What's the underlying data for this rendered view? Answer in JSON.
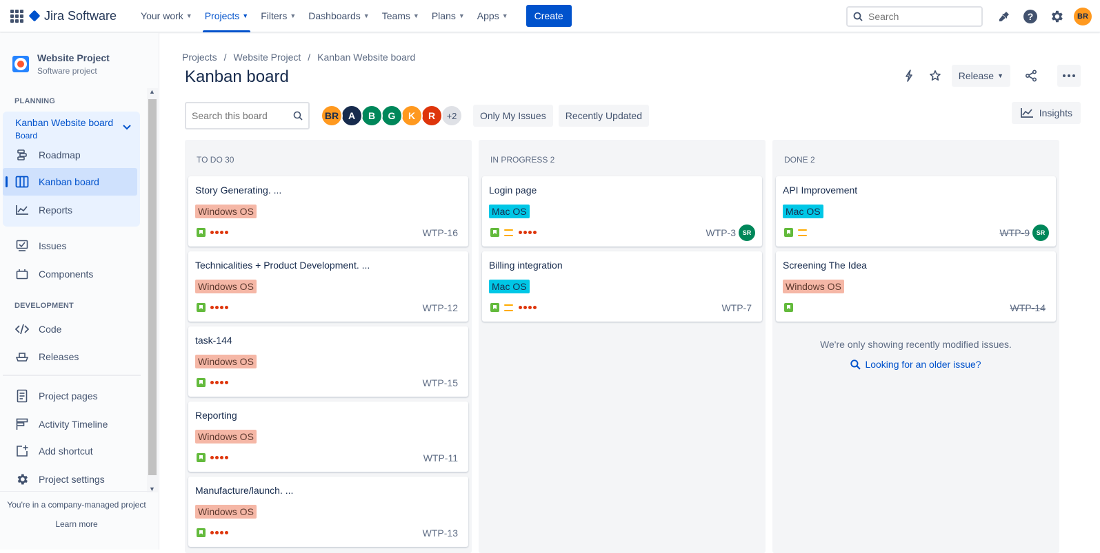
{
  "topbar": {
    "product_name": "Jira Software",
    "nav": [
      {
        "label": "Your work"
      },
      {
        "label": "Projects"
      },
      {
        "label": "Filters"
      },
      {
        "label": "Dashboards"
      },
      {
        "label": "Teams"
      },
      {
        "label": "Plans"
      },
      {
        "label": "Apps"
      }
    ],
    "create_label": "Create",
    "search_placeholder": "Search",
    "user_initials": "BR"
  },
  "sidebar": {
    "project_name": "Website Project",
    "project_type": "Software project",
    "planning_label": "PLANNING",
    "board_name": "Kanban Website board",
    "board_type": "Board",
    "planning_items": [
      {
        "label": "Roadmap",
        "icon": "roadmap-icon"
      },
      {
        "label": "Kanban board",
        "icon": "board-icon"
      },
      {
        "label": "Reports",
        "icon": "reports-icon"
      }
    ],
    "other_items": [
      {
        "label": "Issues",
        "icon": "issues-icon"
      },
      {
        "label": "Components",
        "icon": "components-icon"
      }
    ],
    "development_label": "DEVELOPMENT",
    "dev_items": [
      {
        "label": "Code",
        "icon": "code-icon"
      },
      {
        "label": "Releases",
        "icon": "releases-icon"
      }
    ],
    "bottom_items": [
      {
        "label": "Project pages",
        "icon": "pages-icon"
      },
      {
        "label": "Activity Timeline",
        "icon": "timeline-icon"
      },
      {
        "label": "Add shortcut",
        "icon": "add-shortcut-icon"
      },
      {
        "label": "Project settings",
        "icon": "settings-icon"
      }
    ],
    "footer_text": "You're in a company-managed project",
    "footer_link": "Learn more"
  },
  "main": {
    "breadcrumb": [
      "Projects",
      "Website Project",
      "Kanban Website board"
    ],
    "title": "Kanban board",
    "release_label": "Release",
    "board_search_placeholder": "Search this board",
    "avatars": [
      {
        "initials": "BR",
        "color": "#ff991f",
        "text_color": "#172b4d"
      },
      {
        "initials": "A",
        "color": "#172b4d",
        "text_color": "#ffffff"
      },
      {
        "initials": "B",
        "color": "#00875a",
        "text_color": "#ffffff"
      },
      {
        "initials": "G",
        "color": "#00875a",
        "text_color": "#ffffff"
      },
      {
        "initials": "K",
        "color": "#ff991f",
        "text_color": "#ffffff"
      },
      {
        "initials": "R",
        "color": "#de350b",
        "text_color": "#ffffff"
      }
    ],
    "avatars_more": "+2",
    "filter_only_mine": "Only My Issues",
    "filter_recent": "Recently Updated",
    "insights_label": "Insights"
  },
  "columns": [
    {
      "title": "TO DO 30",
      "cards": [
        {
          "summary": "Story Generating. ...",
          "label": "Windows OS",
          "label_type": "win",
          "key": "WTP-16",
          "priority": "highest",
          "done": false
        },
        {
          "summary": "Technicalities + Product Development. ...",
          "label": "Windows OS",
          "label_type": "win",
          "key": "WTP-12",
          "priority": "highest",
          "done": false
        },
        {
          "summary": "task-144",
          "label": "Windows OS",
          "label_type": "win",
          "key": "WTP-15",
          "priority": "highest",
          "done": false
        },
        {
          "summary": "Reporting",
          "label": "Windows OS",
          "label_type": "win",
          "key": "WTP-11",
          "priority": "highest",
          "done": false
        },
        {
          "summary": "Manufacture/launch. ...",
          "label": "Windows OS",
          "label_type": "win",
          "key": "WTP-13",
          "priority": "highest",
          "done": false
        }
      ]
    },
    {
      "title": "IN PROGRESS 2",
      "cards": [
        {
          "summary": "Login page",
          "label": "Mac OS",
          "label_type": "mac",
          "key": "WTP-3",
          "priority": "medium-highest",
          "assignee": "SR",
          "done": false
        },
        {
          "summary": "Billing integration",
          "label": "Mac OS",
          "label_type": "mac",
          "key": "WTP-7",
          "priority": "medium-highest",
          "done": false
        }
      ]
    },
    {
      "title": "DONE 2",
      "cards": [
        {
          "summary": "API Improvement",
          "label": "Mac OS",
          "label_type": "mac",
          "key": "WTP-9",
          "priority": "medium",
          "assignee": "SR",
          "done": true
        },
        {
          "summary": "Screening The Idea",
          "label": "Windows OS",
          "label_type": "win",
          "key": "WTP-14",
          "priority": "none",
          "done": true
        }
      ],
      "note": "We're only showing recently modified issues.",
      "link": "Looking for an older issue?"
    }
  ]
}
